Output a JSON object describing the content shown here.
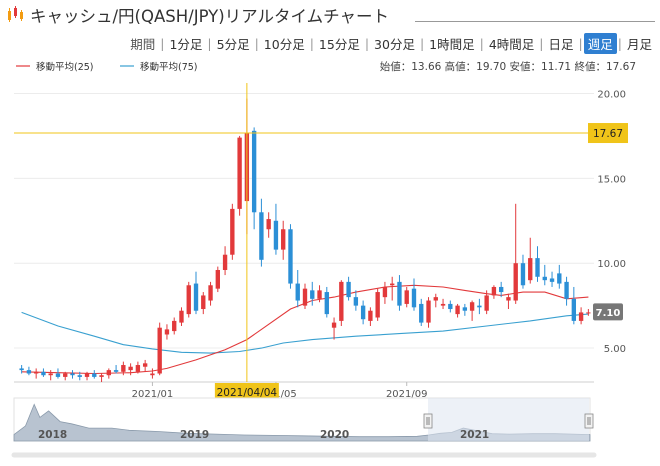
{
  "header": {
    "title": "キャッシュ/円(QASH/JPY)リアルタイムチャート"
  },
  "tabs": {
    "label": "期間",
    "items": [
      "1分足",
      "5分足",
      "10分足",
      "15分足",
      "30分足",
      "1時間足",
      "4時間足",
      "日足",
      "週足",
      "月足"
    ],
    "active": "週足"
  },
  "summary": {
    "text": "始値：13.66 高値：19.70 安値：11.71 終値：17.67"
  },
  "colors": {
    "up": "#e2393b",
    "down": "#2b8fd6",
    "ma25": "#e2393b",
    "ma75": "#39a0d0",
    "crosshair": "#f0c419",
    "active_tab": "#2f7fd1"
  },
  "chart_data": {
    "type": "candlestick",
    "ylim": [
      3,
      20.5
    ],
    "yticks": [
      "5.00",
      "10.00",
      "15.00",
      "20.00"
    ],
    "xticks": [
      "2021/01",
      "2021/05",
      "2021/09"
    ],
    "legend": [
      {
        "name": "移動平均(25)",
        "color": "#e2393b"
      },
      {
        "name": "移動平均(75)",
        "color": "#39a0d0"
      }
    ],
    "crosshair": {
      "x_label": "2021/04/04",
      "y_label": "17.67",
      "index": 31
    },
    "last_price_label": "7.10",
    "x_start": "2020/08/30",
    "candles": [
      [
        3.8,
        4.0,
        3.5,
        3.7
      ],
      [
        3.7,
        3.9,
        3.4,
        3.5
      ],
      [
        3.5,
        3.8,
        3.2,
        3.6
      ],
      [
        3.6,
        3.8,
        3.3,
        3.4
      ],
      [
        3.4,
        3.7,
        3.1,
        3.5
      ],
      [
        3.5,
        3.8,
        3.2,
        3.3
      ],
      [
        3.3,
        3.6,
        3.1,
        3.5
      ],
      [
        3.5,
        3.7,
        3.2,
        3.4
      ],
      [
        3.4,
        3.6,
        3.1,
        3.3
      ],
      [
        3.3,
        3.6,
        3.1,
        3.5
      ],
      [
        3.5,
        3.7,
        3.2,
        3.3
      ],
      [
        3.3,
        3.5,
        3.0,
        3.4
      ],
      [
        3.4,
        3.8,
        3.2,
        3.7
      ],
      [
        3.7,
        4.0,
        3.5,
        3.6
      ],
      [
        3.6,
        4.2,
        3.4,
        4.0
      ],
      [
        3.7,
        4.1,
        3.4,
        3.9
      ],
      [
        3.6,
        4.2,
        3.5,
        4.0
      ],
      [
        3.9,
        4.3,
        3.6,
        4.1
      ],
      [
        3.4,
        3.8,
        3.2,
        3.5
      ],
      [
        3.5,
        6.5,
        3.4,
        6.2
      ],
      [
        5.8,
        6.4,
        5.5,
        6.1
      ],
      [
        6.0,
        6.8,
        5.8,
        6.6
      ],
      [
        6.5,
        7.4,
        6.3,
        7.2
      ],
      [
        7.0,
        8.9,
        6.8,
        8.7
      ],
      [
        8.8,
        9.5,
        7.0,
        7.2
      ],
      [
        7.3,
        8.3,
        7.0,
        8.1
      ],
      [
        7.8,
        8.9,
        7.5,
        8.7
      ],
      [
        8.5,
        9.8,
        8.3,
        9.6
      ],
      [
        9.6,
        11.0,
        9.3,
        10.5
      ],
      [
        10.5,
        13.5,
        10.2,
        13.2
      ],
      [
        13.2,
        17.5,
        12.8,
        17.4
      ],
      [
        13.66,
        19.7,
        11.71,
        17.67
      ],
      [
        17.8,
        18.0,
        12.0,
        13.0
      ],
      [
        13.0,
        13.8,
        9.8,
        10.2
      ],
      [
        12.0,
        13.0,
        11.5,
        12.6
      ],
      [
        12.5,
        13.5,
        10.5,
        10.8
      ],
      [
        10.8,
        12.5,
        10.2,
        12.0
      ],
      [
        12.0,
        12.3,
        8.5,
        8.8
      ],
      [
        8.8,
        9.6,
        7.4,
        7.8
      ],
      [
        7.5,
        8.8,
        7.3,
        8.5
      ],
      [
        8.4,
        8.9,
        7.5,
        7.9
      ],
      [
        7.9,
        8.7,
        7.7,
        8.4
      ],
      [
        8.3,
        8.6,
        6.8,
        7.0
      ],
      [
        6.2,
        6.8,
        5.5,
        6.5
      ],
      [
        6.6,
        9.0,
        6.3,
        8.9
      ],
      [
        8.9,
        9.2,
        7.8,
        8.0
      ],
      [
        8.0,
        8.4,
        7.2,
        7.5
      ],
      [
        7.5,
        7.8,
        6.4,
        6.7
      ],
      [
        6.6,
        7.4,
        6.3,
        7.2
      ],
      [
        6.8,
        8.5,
        6.6,
        8.3
      ],
      [
        8.0,
        8.9,
        7.6,
        8.6
      ],
      [
        8.7,
        9.2,
        7.8,
        8.8
      ],
      [
        8.9,
        9.3,
        7.2,
        7.5
      ],
      [
        7.6,
        8.6,
        7.4,
        8.4
      ],
      [
        8.5,
        9.1,
        7.2,
        7.4
      ],
      [
        7.6,
        7.9,
        6.3,
        6.5
      ],
      [
        6.5,
        8.0,
        6.2,
        7.8
      ],
      [
        7.8,
        8.2,
        7.4,
        8.0
      ],
      [
        7.5,
        7.9,
        7.3,
        7.6
      ],
      [
        7.6,
        7.8,
        7.1,
        7.3
      ],
      [
        7.0,
        7.6,
        6.8,
        7.5
      ],
      [
        7.4,
        7.6,
        6.9,
        7.2
      ],
      [
        7.2,
        7.8,
        6.6,
        7.7
      ],
      [
        7.5,
        7.9,
        7.0,
        7.4
      ],
      [
        7.2,
        8.4,
        7.0,
        8.1
      ],
      [
        8.1,
        8.7,
        7.9,
        8.6
      ],
      [
        8.6,
        8.9,
        8.0,
        8.3
      ],
      [
        7.8,
        8.2,
        7.3,
        8.0
      ],
      [
        7.8,
        13.5,
        7.6,
        10.0
      ],
      [
        10.0,
        10.5,
        8.5,
        8.7
      ],
      [
        9.0,
        11.5,
        8.8,
        10.3
      ],
      [
        10.3,
        11.0,
        8.9,
        9.2
      ],
      [
        9.2,
        9.9,
        8.7,
        9.0
      ],
      [
        9.1,
        9.5,
        8.6,
        8.9
      ],
      [
        9.4,
        9.9,
        8.5,
        8.8
      ],
      [
        8.9,
        9.2,
        7.5,
        7.9
      ],
      [
        7.9,
        8.6,
        6.4,
        6.6
      ],
      [
        6.6,
        7.4,
        6.4,
        7.1
      ],
      [
        7.1,
        7.3,
        6.9,
        7.1
      ]
    ],
    "ma25": [
      [
        0,
        3.6
      ],
      [
        5,
        3.55
      ],
      [
        10,
        3.5
      ],
      [
        15,
        3.55
      ],
      [
        18,
        3.65
      ],
      [
        20,
        3.8
      ],
      [
        24,
        4.3
      ],
      [
        28,
        4.9
      ],
      [
        31,
        5.5
      ],
      [
        34,
        6.4
      ],
      [
        37,
        7.3
      ],
      [
        40,
        7.8
      ],
      [
        43,
        8.0
      ],
      [
        46,
        8.3
      ],
      [
        50,
        8.6
      ],
      [
        54,
        8.7
      ],
      [
        58,
        8.6
      ],
      [
        61,
        8.4
      ],
      [
        64,
        8.2
      ],
      [
        66,
        8.1
      ],
      [
        69,
        8.3
      ],
      [
        72,
        8.3
      ],
      [
        75,
        7.9
      ],
      [
        78,
        8.0
      ]
    ],
    "ma75": [
      [
        0,
        7.1
      ],
      [
        5,
        6.3
      ],
      [
        10,
        5.7
      ],
      [
        14,
        5.2
      ],
      [
        18,
        4.95
      ],
      [
        22,
        4.75
      ],
      [
        26,
        4.7
      ],
      [
        30,
        4.8
      ],
      [
        33,
        5.0
      ],
      [
        36,
        5.3
      ],
      [
        40,
        5.5
      ],
      [
        46,
        5.7
      ],
      [
        52,
        5.85
      ],
      [
        58,
        6.0
      ],
      [
        64,
        6.3
      ],
      [
        70,
        6.6
      ],
      [
        75,
        6.9
      ],
      [
        78,
        7.0
      ]
    ],
    "navigator": {
      "years": [
        "2018",
        "2019",
        "2020",
        "2021"
      ]
    }
  }
}
